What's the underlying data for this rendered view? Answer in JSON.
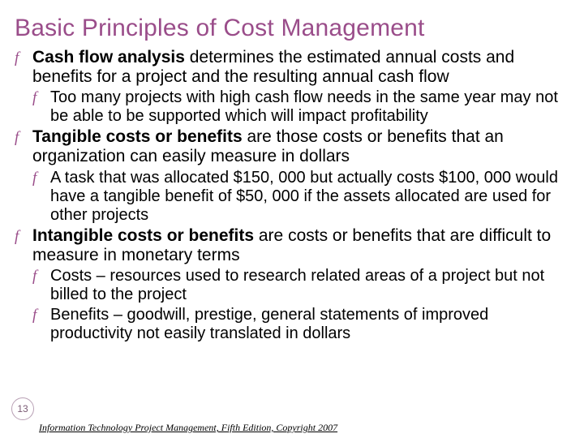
{
  "title": "Basic Principles of Cost Management",
  "bullets": [
    {
      "level": 1,
      "runs": [
        {
          "text": "Cash flow analysis",
          "bold": true
        },
        {
          "text": " determines the estimated annual costs and benefits for a project and the resulting annual cash flow",
          "bold": false
        }
      ]
    },
    {
      "level": 2,
      "runs": [
        {
          "text": "Too many projects with high cash flow needs in the same year may not be able to be supported which will impact profitability",
          "bold": false
        }
      ]
    },
    {
      "level": 1,
      "runs": [
        {
          "text": "Tangible costs or benefits",
          "bold": true
        },
        {
          "text": " are those costs or benefits that an organization can easily measure in dollars",
          "bold": false
        }
      ]
    },
    {
      "level": 2,
      "runs": [
        {
          "text": "A task that was allocated $150, 000 but actually costs $100, 000 would have a tangible benefit of $50, 000 if the assets allocated are used for other projects",
          "bold": false
        }
      ]
    },
    {
      "level": 1,
      "runs": [
        {
          "text": "Intangible costs or benefits",
          "bold": true
        },
        {
          "text": " are costs or benefits that are difficult to measure in monetary terms",
          "bold": false
        }
      ]
    },
    {
      "level": 2,
      "runs": [
        {
          "text": "Costs – resources used to research related areas of a project but not billed to the project",
          "bold": false
        }
      ]
    },
    {
      "level": 2,
      "runs": [
        {
          "text": "Benefits – goodwill, prestige, general statements of improved productivity not easily translated in dollars",
          "bold": false
        }
      ]
    }
  ],
  "page_number": "13",
  "footer": "Information Technology Project Management, Fifth Edition, Copyright 2007",
  "colors": {
    "title": "#9a4d8a",
    "bullet_icon": "#9a4d8a",
    "text": "#000000",
    "background": "#ffffff"
  },
  "bullet_glyph": "f"
}
